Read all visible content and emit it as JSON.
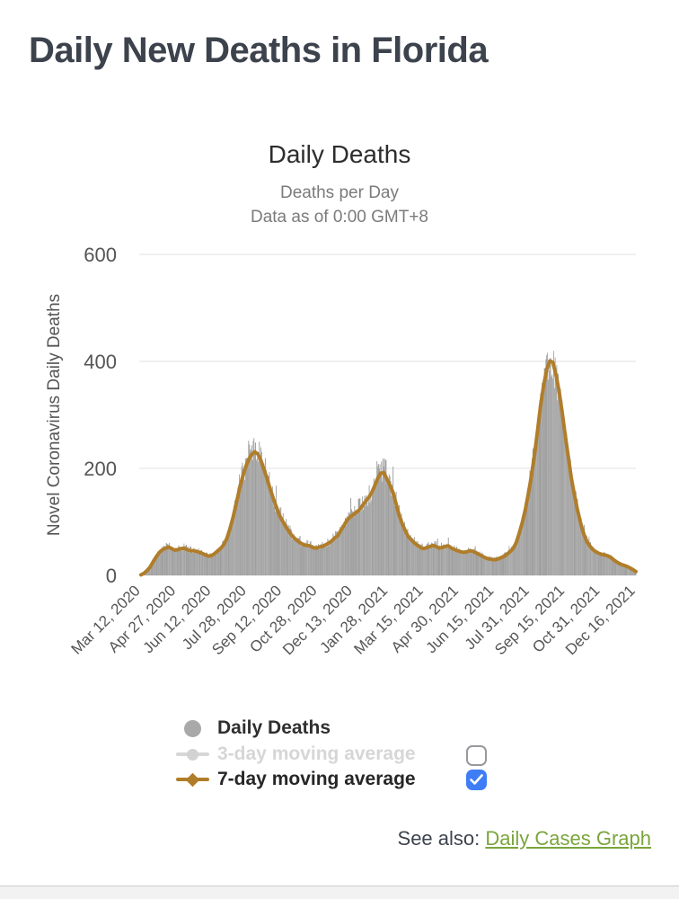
{
  "page": {
    "title": "Daily New Deaths in Florida",
    "see_also_prefix": "See also: ",
    "see_also_link": "Daily Cases Graph"
  },
  "colors": {
    "title_dark": "#3d434d",
    "line_7day": "#b07d2a",
    "bars_gray": "#a5a5a5",
    "bar_shades": [
      "#9e9e9e",
      "#a5a5a5",
      "#ababab"
    ],
    "avg3_gray": "#d6d6d6",
    "gridline": "#e2e2e2",
    "axis_text": "#555555",
    "checkbox_checked_blue": "#3f7df6",
    "checkbox_border_gray": "#97999c",
    "link_green": "#7aa53c"
  },
  "chart_data": {
    "type": "area",
    "title": "Daily Deaths",
    "subtitle": [
      "Deaths per Day",
      "Data as of 0:00 GMT+8"
    ],
    "ylabel": "Novel Coronavirus Daily Deaths",
    "xlabel": "",
    "ylim": [
      0,
      600
    ],
    "yticks": [
      0,
      200,
      400,
      600
    ],
    "grid": "horizontal",
    "legend_position": "bottom-left",
    "x_total_days": 644,
    "xtick_days": [
      0,
      46,
      92,
      138,
      184,
      230,
      276,
      322,
      368,
      414,
      460,
      506,
      552,
      598,
      644
    ],
    "xtick_labels": [
      "Mar 12, 2020",
      "Apr 27, 2020",
      "Jun 12, 2020",
      "Jul 28, 2020",
      "Sep 12, 2020",
      "Oct 28, 2020",
      "Dec 13, 2020",
      "Jan 28, 2021",
      "Mar 15, 2021",
      "Apr 30, 2021",
      "Jun 15, 2021",
      "Jul 31, 2021",
      "Sep 15, 2021",
      "Oct 31, 2021",
      "Dec 16, 2021"
    ],
    "legend": [
      {
        "label": "Daily Deaths",
        "marker": "circle",
        "color": "#a9a9a9",
        "checked": null
      },
      {
        "label": "3-day moving average",
        "marker": "line-circle",
        "color": "#d6d6d6",
        "checked": false
      },
      {
        "label": "7-day moving average",
        "marker": "line-diamond",
        "color": "#b07d2a",
        "checked": true
      }
    ],
    "series": [
      {
        "name": "Daily Deaths",
        "render": "bars",
        "color": "#a5a5a5",
        "jitter": 0.14,
        "jitter_seed": 20,
        "note": "daily bars scatter tightly around the 7-day moving average curve"
      },
      {
        "name": "3-day moving average",
        "render": "line",
        "color": "#d6d6d6",
        "visible": false
      },
      {
        "name": "7-day moving average",
        "render": "line",
        "color": "#b07d2a",
        "visible": true,
        "sample_step_days": 4,
        "values": [
          1,
          4,
          9,
          16,
          26,
          35,
          43,
          48,
          51,
          53,
          50,
          47,
          48,
          50,
          51,
          48,
          46,
          46,
          45,
          43,
          41,
          38,
          36,
          37,
          41,
          46,
          51,
          58,
          70,
          88,
          110,
          135,
          160,
          183,
          202,
          216,
          226,
          231,
          227,
          215,
          198,
          181,
          162,
          144,
          128,
          113,
          102,
          92,
          83,
          75,
          69,
          64,
          60,
          57,
          56,
          55,
          52,
          51,
          53,
          54,
          57,
          60,
          64,
          70,
          74,
          84,
          93,
          103,
          109,
          113,
          118,
          122,
          130,
          138,
          145,
          154,
          167,
          181,
          191,
          192,
          180,
          168,
          155,
          133,
          112,
          96,
          83,
          72,
          66,
          60,
          56,
          52,
          50,
          52,
          54,
          56,
          54,
          51,
          52,
          54,
          55,
          51,
          48,
          46,
          44,
          43,
          44,
          46,
          45,
          42,
          39,
          36,
          33,
          31,
          30,
          29,
          30,
          33,
          35,
          39,
          44,
          50,
          60,
          78,
          98,
          122,
          152,
          185,
          225,
          270,
          318,
          355,
          385,
          401,
          398,
          375,
          345,
          305,
          262,
          222,
          182,
          150,
          122,
          98,
          78,
          64,
          55,
          48,
          44,
          41,
          39,
          38,
          36,
          33,
          28,
          24,
          21,
          19,
          17,
          14,
          11,
          7
        ]
      }
    ]
  }
}
